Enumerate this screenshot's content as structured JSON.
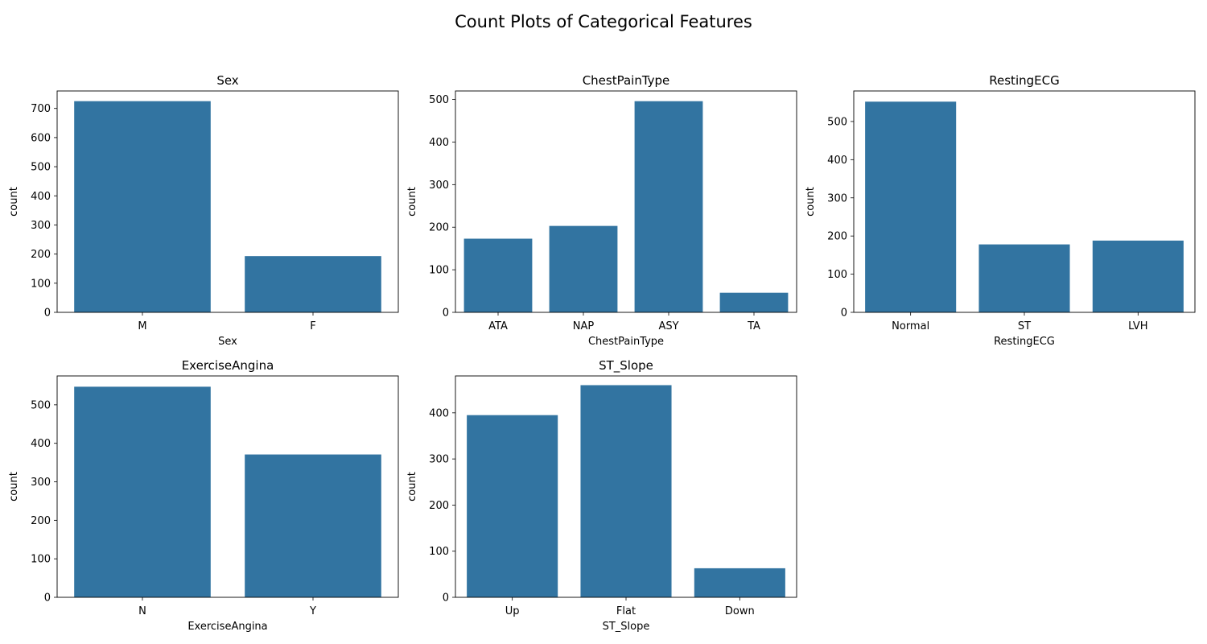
{
  "figure": {
    "suptitle": "Count Plots of Categorical Features",
    "bar_color": "#3274a1"
  },
  "chart_data": [
    {
      "type": "bar",
      "title": "Sex",
      "xlabel": "Sex",
      "ylabel": "count",
      "categories": [
        "M",
        "F"
      ],
      "values": [
        725,
        193
      ],
      "ylim": [
        0,
        760
      ],
      "yticks": [
        0,
        100,
        200,
        300,
        400,
        500,
        600,
        700
      ],
      "grid": false
    },
    {
      "type": "bar",
      "title": "ChestPainType",
      "xlabel": "ChestPainType",
      "ylabel": "count",
      "categories": [
        "ATA",
        "NAP",
        "ASY",
        "TA"
      ],
      "values": [
        173,
        203,
        496,
        46
      ],
      "ylim": [
        0,
        520
      ],
      "yticks": [
        0,
        100,
        200,
        300,
        400,
        500
      ],
      "grid": false
    },
    {
      "type": "bar",
      "title": "RestingECG",
      "xlabel": "RestingECG",
      "ylabel": "count",
      "categories": [
        "Normal",
        "ST",
        "LVH"
      ],
      "values": [
        552,
        178,
        188
      ],
      "ylim": [
        0,
        580
      ],
      "yticks": [
        0,
        100,
        200,
        300,
        400,
        500
      ],
      "grid": false
    },
    {
      "type": "bar",
      "title": "ExerciseAngina",
      "xlabel": "ExerciseAngina",
      "ylabel": "count",
      "categories": [
        "N",
        "Y"
      ],
      "values": [
        547,
        371
      ],
      "ylim": [
        0,
        575
      ],
      "yticks": [
        0,
        100,
        200,
        300,
        400,
        500
      ],
      "grid": false
    },
    {
      "type": "bar",
      "title": "ST_Slope",
      "xlabel": "ST_Slope",
      "ylabel": "count",
      "categories": [
        "Up",
        "Flat",
        "Down"
      ],
      "values": [
        395,
        460,
        63
      ],
      "ylim": [
        0,
        480
      ],
      "yticks": [
        0,
        100,
        200,
        300,
        400
      ],
      "grid": false
    }
  ]
}
